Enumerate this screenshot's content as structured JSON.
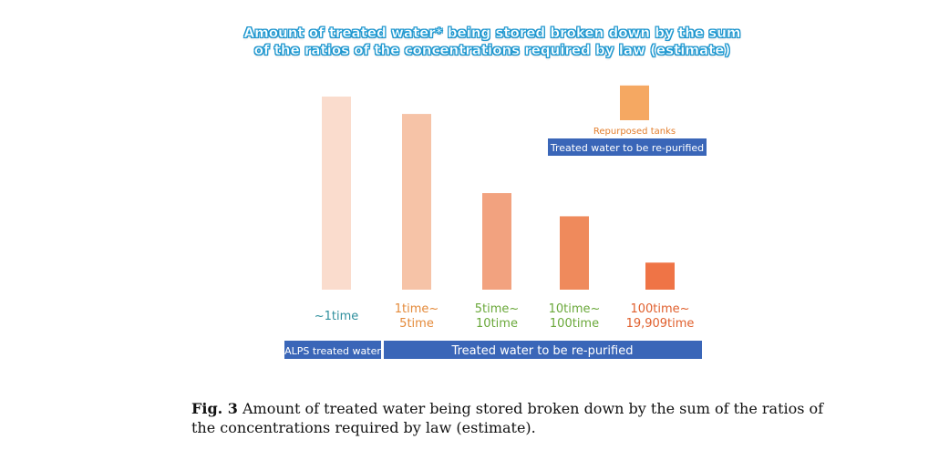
{
  "chart_data": {
    "type": "bar",
    "title_line1": "Amount of treated water* being stored broken down by the sum",
    "title_line2": "of the ratios of the concentrations required by law (estimate)",
    "categories": [
      {
        "line1": "~1time",
        "line2": ""
      },
      {
        "line1": "1time~",
        "line2": "5time"
      },
      {
        "line1": "5time~",
        "line2": "10time"
      },
      {
        "line1": "10time~",
        "line2": "100time"
      },
      {
        "line1": "100time~",
        "line2": "19,909time"
      }
    ],
    "values": [
      100,
      91,
      50,
      38,
      14
    ],
    "bar_colors": [
      "#fadccd",
      "#f6c3a7",
      "#f2a27f",
      "#ef8a5c",
      "#ef7446"
    ],
    "label_colors": [
      "#2f8f9d",
      "#e48a3a",
      "#6aa83a",
      "#6aa83a",
      "#e0602e"
    ],
    "legend": {
      "repurposed_label": "Repurposed tanks",
      "repurposed_color": "#f5a862",
      "repurposed_value": 18,
      "rep_label_color": "#e37e2c",
      "group_label": "Treated water to be re-purified"
    },
    "group_bars": [
      {
        "label": "ALPS treated water",
        "color": "#3a66b8"
      },
      {
        "label": "Treated water to be re-purified",
        "color": "#3a66b8"
      }
    ]
  },
  "caption": {
    "label": "Fig. 3",
    "text": "Amount of treated water being stored broken down by the sum of the ratios of the concentrations required by law (estimate)."
  }
}
